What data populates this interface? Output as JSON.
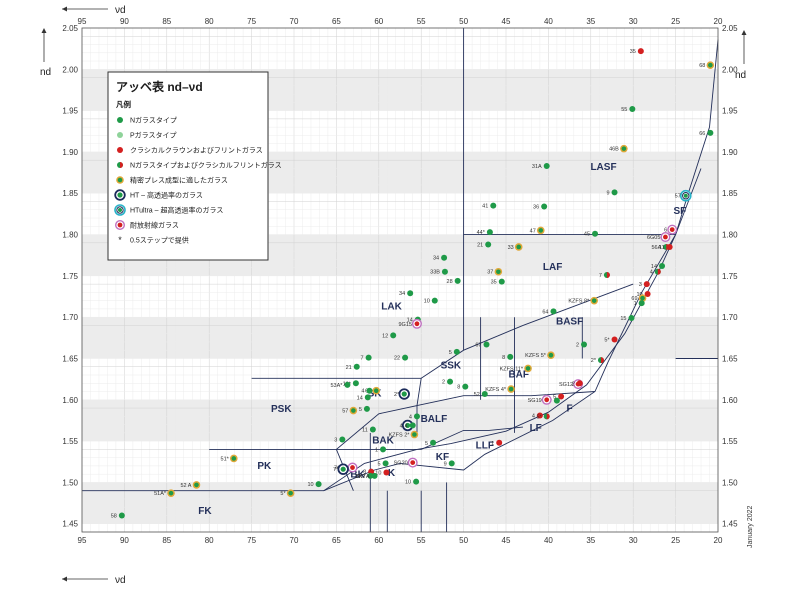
{
  "chart_data": {
    "type": "scatter",
    "title": "アッベ表 nd–νd",
    "xlabel": "νd",
    "ylabel": "nd",
    "xlim": [
      95,
      20
    ],
    "ylim": [
      1.44,
      2.05
    ],
    "x_ticks": [
      "95",
      "90",
      "85",
      "80",
      "75",
      "70",
      "65",
      "60",
      "55",
      "50",
      "45",
      "40",
      "35",
      "30",
      "25",
      "20"
    ],
    "y_ticks": [
      "1.45",
      "1.50",
      "1.55",
      "1.60",
      "1.65",
      "1.70",
      "1.75",
      "1.80",
      "1.85",
      "1.90",
      "1.95",
      "2.00",
      "2.05"
    ],
    "date_note": "January 2022",
    "colors": {
      "N": "#1f9a48",
      "P": "#8fd39a",
      "classic": "#d42020",
      "N_classic": "#1f9a48",
      "precision": "#e0a838",
      "HT": "#1b2b5a",
      "HTultra": "#27b2c8",
      "radiation": "#c070c0",
      "line": "#24305a"
    },
    "legend": {
      "title": "アッベ表 nd–νd",
      "heading": "凡例",
      "items": [
        {
          "key": "N",
          "label": "Nガラスタイプ"
        },
        {
          "key": "P",
          "label": "Pガラスタイプ"
        },
        {
          "key": "classic",
          "label": "クラシカルクラウンおよびフリントガラス"
        },
        {
          "key": "N_classic",
          "label": "Nガラスタイプおよびクラシカルフリントガラス"
        },
        {
          "key": "precision",
          "label": "精密プレス成型に適したガラス"
        },
        {
          "key": "HT",
          "label": "HT – 高透過率のガラス"
        },
        {
          "key": "HTultra",
          "label": "HTultra – 超高透過率のガラス"
        },
        {
          "key": "radiation",
          "label": "耐放射線ガラス"
        },
        {
          "key": "star",
          "label": "0.5ステップで提供"
        }
      ]
    },
    "regions": [
      {
        "name": "LASF",
        "x": 33.5,
        "y": 1.878
      },
      {
        "name": "SF",
        "x": 24.5,
        "y": 1.825
      },
      {
        "name": "LAF",
        "x": 39.5,
        "y": 1.757
      },
      {
        "name": "LAK",
        "x": 58.5,
        "y": 1.709
      },
      {
        "name": "BASF",
        "x": 37.5,
        "y": 1.691
      },
      {
        "name": "SSK",
        "x": 51.5,
        "y": 1.638
      },
      {
        "name": "BAF",
        "x": 43.5,
        "y": 1.627
      },
      {
        "name": "SK",
        "x": 60.5,
        "y": 1.604
      },
      {
        "name": "PSK",
        "x": 71.5,
        "y": 1.585
      },
      {
        "name": "BALF",
        "x": 53.5,
        "y": 1.573
      },
      {
        "name": "F",
        "x": 37.5,
        "y": 1.586
      },
      {
        "name": "LF",
        "x": 41.5,
        "y": 1.562
      },
      {
        "name": "BAK",
        "x": 59.5,
        "y": 1.547
      },
      {
        "name": "LLF",
        "x": 47.5,
        "y": 1.541
      },
      {
        "name": "KF",
        "x": 52.5,
        "y": 1.527
      },
      {
        "name": "PK",
        "x": 73.5,
        "y": 1.516
      },
      {
        "name": "BK",
        "x": 62.5,
        "y": 1.506
      },
      {
        "name": "K",
        "x": 58.5,
        "y": 1.508
      },
      {
        "name": "FK",
        "x": 80.5,
        "y": 1.462
      }
    ],
    "points": [
      {
        "label": "35",
        "x": 29.1,
        "y": 2.022,
        "type": "classic"
      },
      {
        "label": "68",
        "x": 20.9,
        "y": 2.005,
        "type": "precision"
      },
      {
        "label": "55",
        "x": 30.1,
        "y": 1.952,
        "type": "N"
      },
      {
        "label": "66",
        "x": 20.9,
        "y": 1.923,
        "type": "N"
      },
      {
        "label": "46B",
        "x": 31.1,
        "y": 1.904,
        "type": "precision"
      },
      {
        "label": "31A",
        "x": 40.2,
        "y": 1.883,
        "type": "N"
      },
      {
        "label": "57",
        "x": 23.8,
        "y": 1.847,
        "type": "HTultra"
      },
      {
        "label": "9",
        "x": 32.2,
        "y": 1.851,
        "type": "N"
      },
      {
        "label": "41",
        "x": 46.5,
        "y": 1.835,
        "type": "N"
      },
      {
        "label": "36",
        "x": 40.5,
        "y": 1.834,
        "type": "N"
      },
      {
        "label": "6",
        "x": 25.4,
        "y": 1.806,
        "type": "radiation"
      },
      {
        "label": "44*",
        "x": 46.9,
        "y": 1.803,
        "type": "N"
      },
      {
        "label": "47",
        "x": 40.9,
        "y": 1.805,
        "type": "precision"
      },
      {
        "label": "45",
        "x": 34.5,
        "y": 1.801,
        "type": "N"
      },
      {
        "label": "6G05",
        "x": 26.2,
        "y": 1.797,
        "type": "radiation"
      },
      {
        "label": "21",
        "x": 47.1,
        "y": 1.788,
        "type": "N"
      },
      {
        "label": "33",
        "x": 43.5,
        "y": 1.785,
        "type": "precision"
      },
      {
        "label": "56A",
        "x": 26.1,
        "y": 1.785,
        "type": "N_classic"
      },
      {
        "label": "11",
        "x": 25.7,
        "y": 1.785,
        "type": "classic"
      },
      {
        "label": "34",
        "x": 52.3,
        "y": 1.772,
        "type": "N"
      },
      {
        "label": "14",
        "x": 26.6,
        "y": 1.762,
        "type": "N"
      },
      {
        "label": "33B",
        "x": 52.2,
        "y": 1.755,
        "type": "N"
      },
      {
        "label": "37",
        "x": 45.9,
        "y": 1.755,
        "type": "precision"
      },
      {
        "label": "7",
        "x": 33.1,
        "y": 1.751,
        "type": "N_classic"
      },
      {
        "label": "4",
        "x": 27.1,
        "y": 1.755,
        "type": "N_classic"
      },
      {
        "label": "28",
        "x": 50.7,
        "y": 1.744,
        "type": "N"
      },
      {
        "label": "35",
        "x": 45.5,
        "y": 1.743,
        "type": "N"
      },
      {
        "label": "3",
        "x": 28.4,
        "y": 1.74,
        "type": "classic"
      },
      {
        "label": "10",
        "x": 28.3,
        "y": 1.728,
        "type": "classic"
      },
      {
        "label": "34",
        "x": 56.3,
        "y": 1.729,
        "type": "N"
      },
      {
        "label": "69",
        "x": 28.9,
        "y": 1.723,
        "type": "precision"
      },
      {
        "label": "KZFS 8*",
        "x": 34.6,
        "y": 1.72,
        "type": "precision"
      },
      {
        "label": "1",
        "x": 29.0,
        "y": 1.717,
        "type": "N"
      },
      {
        "label": "10",
        "x": 53.4,
        "y": 1.72,
        "type": "N"
      },
      {
        "label": "14",
        "x": 55.4,
        "y": 1.697,
        "type": "N"
      },
      {
        "label": "15",
        "x": 30.2,
        "y": 1.699,
        "type": "N"
      },
      {
        "label": "9G15",
        "x": 55.5,
        "y": 1.692,
        "type": "radiation"
      },
      {
        "label": "64",
        "x": 39.4,
        "y": 1.707,
        "type": "N"
      },
      {
        "label": "12",
        "x": 58.3,
        "y": 1.678,
        "type": "N"
      },
      {
        "label": "5*",
        "x": 32.2,
        "y": 1.673,
        "type": "classic"
      },
      {
        "label": "KZFS 5*",
        "x": 39.7,
        "y": 1.654,
        "type": "precision"
      },
      {
        "label": "2",
        "x": 35.8,
        "y": 1.667,
        "type": "N"
      },
      {
        "label": "7",
        "x": 61.2,
        "y": 1.651,
        "type": "N"
      },
      {
        "label": "22",
        "x": 56.9,
        "y": 1.651,
        "type": "N"
      },
      {
        "label": "5",
        "x": 50.8,
        "y": 1.658,
        "type": "N"
      },
      {
        "label": "67",
        "x": 47.3,
        "y": 1.667,
        "type": "N"
      },
      {
        "label": "KZFS 11*",
        "x": 42.4,
        "y": 1.638,
        "type": "precision"
      },
      {
        "label": "8",
        "x": 44.5,
        "y": 1.652,
        "type": "N"
      },
      {
        "label": "2*",
        "x": 33.8,
        "y": 1.648,
        "type": "N_classic"
      },
      {
        "label": "21",
        "x": 62.6,
        "y": 1.64,
        "type": "N"
      },
      {
        "label": "2",
        "x": 51.6,
        "y": 1.622,
        "type": "N"
      },
      {
        "label": "8",
        "x": 49.8,
        "y": 1.616,
        "type": "N"
      },
      {
        "label": "16*",
        "x": 62.7,
        "y": 1.62,
        "type": "N"
      },
      {
        "label": "53A*",
        "x": 63.7,
        "y": 1.618,
        "type": "N"
      },
      {
        "label": "60",
        "x": 60.3,
        "y": 1.611,
        "type": "precision"
      },
      {
        "label": "4",
        "x": 61.1,
        "y": 1.611,
        "type": "N"
      },
      {
        "label": "2*",
        "x": 57.0,
        "y": 1.607,
        "type": "HT"
      },
      {
        "label": "KZFS 4*",
        "x": 44.4,
        "y": 1.613,
        "type": "precision"
      },
      {
        "label": "52",
        "x": 47.5,
        "y": 1.607,
        "type": "N"
      },
      {
        "label": "14",
        "x": 61.3,
        "y": 1.603,
        "type": "N"
      },
      {
        "label": "5",
        "x": 38.5,
        "y": 1.604,
        "type": "classic"
      },
      {
        "label": "SG12",
        "x": 36.5,
        "y": 1.619,
        "type": "radiation"
      },
      {
        "label": "2",
        "x": 36.3,
        "y": 1.62,
        "type": "classic"
      },
      {
        "label": "5*",
        "x": 39.0,
        "y": 1.599,
        "type": "N"
      },
      {
        "label": "57",
        "x": 63.0,
        "y": 1.587,
        "type": "precision"
      },
      {
        "label": "5",
        "x": 61.4,
        "y": 1.589,
        "type": "N"
      },
      {
        "label": "SG19",
        "x": 40.2,
        "y": 1.6,
        "type": "radiation"
      },
      {
        "label": "4",
        "x": 41.0,
        "y": 1.581,
        "type": "classic"
      },
      {
        "label": "5*",
        "x": 40.2,
        "y": 1.58,
        "type": "N_classic"
      },
      {
        "label": "4",
        "x": 56.6,
        "y": 1.569,
        "type": "HT"
      },
      {
        "label": "4",
        "x": 55.5,
        "y": 1.58,
        "type": "N"
      },
      {
        "label": "11",
        "x": 60.7,
        "y": 1.564,
        "type": "N"
      },
      {
        "label": "4",
        "x": 56.0,
        "y": 1.569,
        "type": "N"
      },
      {
        "label": "KZFS 2*",
        "x": 55.8,
        "y": 1.558,
        "type": "precision"
      },
      {
        "label": "3",
        "x": 64.3,
        "y": 1.552,
        "type": "N"
      },
      {
        "label": "5",
        "x": 53.6,
        "y": 1.548,
        "type": "N"
      },
      {
        "label": "1",
        "x": 45.8,
        "y": 1.548,
        "type": "classic"
      },
      {
        "label": "1",
        "x": 59.5,
        "y": 1.54,
        "type": "N"
      },
      {
        "label": "51*",
        "x": 77.1,
        "y": 1.529,
        "type": "precision"
      },
      {
        "label": "SG20",
        "x": 56.0,
        "y": 1.524,
        "type": "radiation"
      },
      {
        "label": "7G18",
        "x": 63.1,
        "y": 1.518,
        "type": "radiation"
      },
      {
        "label": "5",
        "x": 59.2,
        "y": 1.523,
        "type": "N"
      },
      {
        "label": "9",
        "x": 51.4,
        "y": 1.523,
        "type": "N"
      },
      {
        "label": "7*",
        "x": 64.2,
        "y": 1.516,
        "type": "HT"
      },
      {
        "label": "3",
        "x": 60.9,
        "y": 1.513,
        "type": "classic"
      },
      {
        "label": "10",
        "x": 59.1,
        "y": 1.512,
        "type": "classic"
      },
      {
        "label": "ZK7",
        "x": 61.0,
        "y": 1.508,
        "type": "N"
      },
      {
        "label": "ZK7A",
        "x": 60.5,
        "y": 1.508,
        "type": "N"
      },
      {
        "label": "10",
        "x": 55.6,
        "y": 1.501,
        "type": "N"
      },
      {
        "label": "10",
        "x": 67.1,
        "y": 1.498,
        "type": "N"
      },
      {
        "label": "52 A",
        "x": 81.5,
        "y": 1.497,
        "type": "precision"
      },
      {
        "label": "51A*",
        "x": 84.5,
        "y": 1.487,
        "type": "precision"
      },
      {
        "label": "5*",
        "x": 70.4,
        "y": 1.487,
        "type": "precision"
      },
      {
        "label": "58",
        "x": 90.3,
        "y": 1.46,
        "type": "N"
      }
    ]
  }
}
